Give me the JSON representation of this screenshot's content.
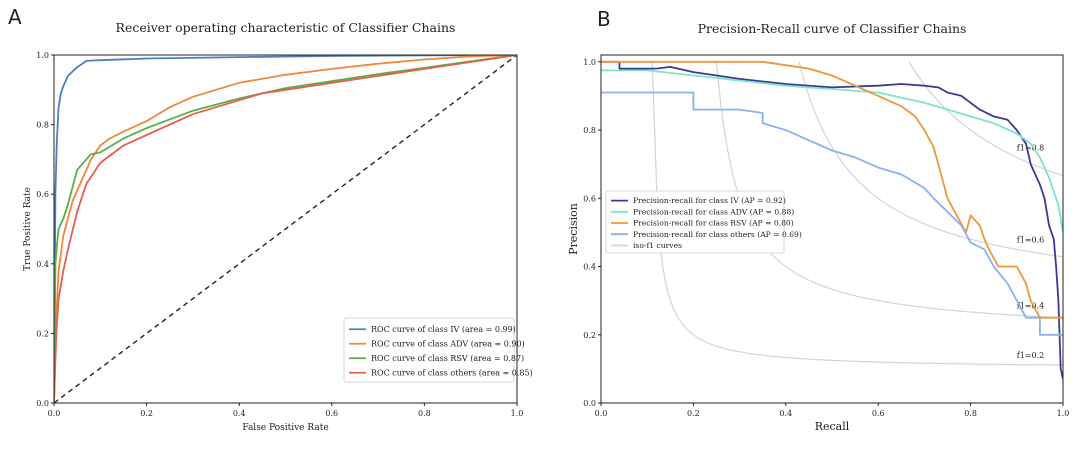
{
  "chart_data": [
    {
      "panel": "A",
      "type": "line",
      "title": "Receiver operating characteristic of Classifier Chains",
      "xlabel": "False Positive Rate",
      "ylabel": "True Positive Rate",
      "xlim": [
        0.0,
        1.0
      ],
      "ylim": [
        0.0,
        1.0
      ],
      "xticks": [
        "0.0",
        "0.2",
        "0.4",
        "0.6",
        "0.8",
        "1.0"
      ],
      "yticks": [
        "0.0",
        "0.2",
        "0.4",
        "0.6",
        "0.8",
        "1.0"
      ],
      "grid": false,
      "legend_position": "lower-right",
      "series": [
        {
          "name": "ROC curve of class IV (area = 0.99)",
          "color": "#4a7fc1",
          "x": [
            0,
            0.003,
            0.006,
            0.01,
            0.015,
            0.02,
            0.03,
            0.05,
            0.07,
            0.1,
            0.2,
            0.4,
            0.6,
            0.8,
            1.0
          ],
          "y": [
            0,
            0.6,
            0.75,
            0.85,
            0.89,
            0.91,
            0.94,
            0.965,
            0.983,
            0.985,
            0.99,
            0.994,
            0.997,
            0.999,
            1.0
          ]
        },
        {
          "name": "ROC curve of class ADV (area = 0.90)",
          "color": "#f0883a",
          "x": [
            0,
            0.005,
            0.01,
            0.02,
            0.04,
            0.06,
            0.08,
            0.1,
            0.12,
            0.15,
            0.2,
            0.25,
            0.3,
            0.35,
            0.4,
            0.5,
            0.6,
            0.7,
            0.8,
            0.9,
            1.0
          ],
          "y": [
            0,
            0.25,
            0.38,
            0.48,
            0.58,
            0.64,
            0.7,
            0.74,
            0.76,
            0.78,
            0.81,
            0.85,
            0.88,
            0.9,
            0.92,
            0.943,
            0.96,
            0.975,
            0.987,
            0.996,
            1.0
          ]
        },
        {
          "name": "ROC curve of class RSV (area = 0.87)",
          "color": "#5aae48",
          "x": [
            0,
            0.003,
            0.006,
            0.01,
            0.02,
            0.03,
            0.05,
            0.08,
            0.1,
            0.15,
            0.2,
            0.3,
            0.4,
            0.45,
            0.5,
            0.6,
            0.7,
            0.8,
            0.9,
            1.0
          ],
          "y": [
            0,
            0.4,
            0.45,
            0.5,
            0.53,
            0.57,
            0.67,
            0.715,
            0.72,
            0.76,
            0.79,
            0.84,
            0.875,
            0.89,
            0.905,
            0.925,
            0.945,
            0.963,
            0.982,
            1.0
          ]
        },
        {
          "name": "ROC curve of class others (area = 0.85)",
          "color": "#e45f4c",
          "x": [
            0,
            0.005,
            0.01,
            0.02,
            0.03,
            0.05,
            0.07,
            0.1,
            0.15,
            0.2,
            0.3,
            0.4,
            0.45,
            0.5,
            0.6,
            0.7,
            0.8,
            0.9,
            1.0
          ],
          "y": [
            0,
            0.2,
            0.3,
            0.38,
            0.44,
            0.55,
            0.63,
            0.69,
            0.74,
            0.77,
            0.83,
            0.87,
            0.89,
            0.9,
            0.92,
            0.94,
            0.96,
            0.98,
            1.0
          ]
        }
      ],
      "reference_line": {
        "x": [
          0,
          1
        ],
        "y": [
          0,
          1
        ],
        "style": "dashed",
        "color": "#222222"
      }
    },
    {
      "panel": "B",
      "type": "line",
      "title": "Precision-Recall curve of Classifier Chains",
      "xlabel": "Recall",
      "ylabel": "Precision",
      "xlim": [
        0.0,
        1.0
      ],
      "ylim": [
        0.0,
        1.02
      ],
      "xticks": [
        "0.0",
        "0.2",
        "0.4",
        "0.6",
        "0.8",
        "1.0"
      ],
      "yticks": [
        "0.0",
        "0.2",
        "0.4",
        "0.6",
        "0.8",
        "1.0"
      ],
      "grid": false,
      "legend_position": "center-left",
      "series": [
        {
          "name": "Precision-recall for class IV (AP = 0.92)",
          "color": "#3a3a96",
          "x": [
            0,
            0.04,
            0.04,
            0.08,
            0.12,
            0.15,
            0.2,
            0.3,
            0.4,
            0.5,
            0.6,
            0.65,
            0.7,
            0.73,
            0.75,
            0.78,
            0.8,
            0.82,
            0.85,
            0.88,
            0.9,
            0.92,
            0.93,
            0.95,
            0.96,
            0.97,
            0.98,
            0.985,
            0.99,
            0.995,
            1.0
          ],
          "y": [
            1.0,
            1.0,
            0.98,
            0.98,
            0.98,
            0.985,
            0.97,
            0.95,
            0.935,
            0.925,
            0.93,
            0.935,
            0.93,
            0.925,
            0.91,
            0.9,
            0.88,
            0.86,
            0.84,
            0.83,
            0.8,
            0.76,
            0.7,
            0.64,
            0.6,
            0.52,
            0.48,
            0.4,
            0.3,
            0.1,
            0.07
          ]
        },
        {
          "name": "Precision-recall for class ADV (AP = 0.88)",
          "color": "#7fe3cf",
          "x": [
            0,
            0.1,
            0.2,
            0.3,
            0.4,
            0.5,
            0.6,
            0.7,
            0.8,
            0.85,
            0.9,
            0.93,
            0.95,
            0.97,
            0.99,
            1.0
          ],
          "y": [
            0.975,
            0.975,
            0.96,
            0.945,
            0.93,
            0.92,
            0.91,
            0.88,
            0.84,
            0.82,
            0.79,
            0.76,
            0.72,
            0.66,
            0.58,
            0.5
          ]
        },
        {
          "name": "Precision-recall for class RSV (AP = 0.80)",
          "color": "#f0963c",
          "x": [
            0,
            0.2,
            0.35,
            0.4,
            0.45,
            0.5,
            0.55,
            0.6,
            0.65,
            0.68,
            0.7,
            0.72,
            0.73,
            0.74,
            0.75,
            0.77,
            0.79,
            0.8,
            0.82,
            0.83,
            0.84,
            0.86,
            0.9,
            0.92,
            0.93,
            0.95,
            1.0
          ],
          "y": [
            1.0,
            1.0,
            1.0,
            0.99,
            0.98,
            0.96,
            0.93,
            0.9,
            0.87,
            0.84,
            0.8,
            0.75,
            0.7,
            0.65,
            0.6,
            0.55,
            0.5,
            0.55,
            0.52,
            0.48,
            0.45,
            0.4,
            0.4,
            0.35,
            0.3,
            0.25,
            0.25
          ]
        },
        {
          "name": "Precision-recall for class others (AP = 0.69)",
          "color": "#8ab1ec",
          "x": [
            0,
            0.2,
            0.2,
            0.3,
            0.35,
            0.35,
            0.4,
            0.45,
            0.5,
            0.55,
            0.6,
            0.65,
            0.7,
            0.72,
            0.75,
            0.78,
            0.8,
            0.83,
            0.85,
            0.88,
            0.9,
            0.92,
            0.95,
            0.95,
            1.0
          ],
          "y": [
            0.91,
            0.91,
            0.86,
            0.86,
            0.85,
            0.82,
            0.8,
            0.77,
            0.74,
            0.72,
            0.69,
            0.67,
            0.63,
            0.6,
            0.56,
            0.52,
            0.47,
            0.45,
            0.4,
            0.35,
            0.3,
            0.25,
            0.25,
            0.2,
            0.2
          ]
        }
      ],
      "iso_f1": {
        "legend_label": "iso-f1 curves",
        "color": "#d4d4d4",
        "levels": [
          0.2,
          0.4,
          0.6,
          0.8
        ],
        "labels": [
          "f1=0.2",
          "f1=0.4",
          "f1=0.6",
          "f1=0.8"
        ]
      }
    }
  ]
}
